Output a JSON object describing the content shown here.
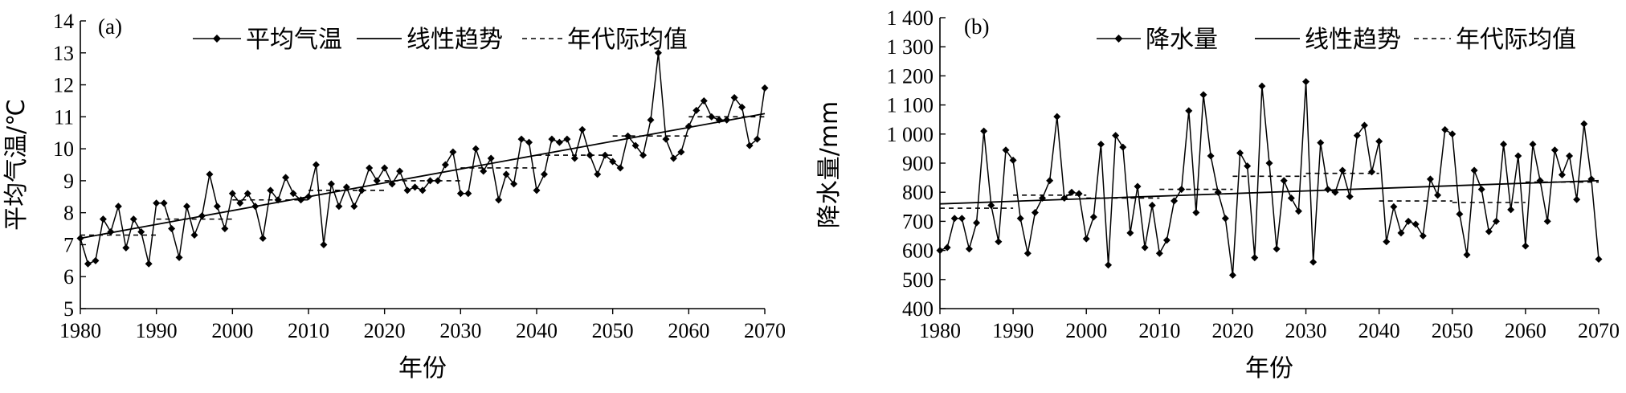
{
  "chart_data": [
    {
      "type": "line",
      "panel_label": "(a)",
      "title": "",
      "xlabel": "年份",
      "ylabel": "平均气温/℃",
      "xlim": [
        1980,
        2070
      ],
      "ylim": [
        5,
        14
      ],
      "x_ticks": [
        "1980",
        "1990",
        "2000",
        "2010",
        "2020",
        "2030",
        "2040",
        "2050",
        "2060",
        "2070"
      ],
      "y_ticks": [
        "5",
        "6",
        "7",
        "8",
        "9",
        "10",
        "11",
        "12",
        "13",
        "14"
      ],
      "legend_position": "top",
      "grid": false,
      "series": [
        {
          "name": "平均气温",
          "style": "line-diamond",
          "x": [
            1980,
            1981,
            1982,
            1983,
            1984,
            1985,
            1986,
            1987,
            1988,
            1989,
            1990,
            1991,
            1992,
            1993,
            1994,
            1995,
            1996,
            1997,
            1998,
            1999,
            2000,
            2001,
            2002,
            2003,
            2004,
            2005,
            2006,
            2007,
            2008,
            2009,
            2010,
            2011,
            2012,
            2013,
            2014,
            2015,
            2016,
            2017,
            2018,
            2019,
            2020,
            2021,
            2022,
            2023,
            2024,
            2025,
            2026,
            2027,
            2028,
            2029,
            2030,
            2031,
            2032,
            2033,
            2034,
            2035,
            2036,
            2037,
            2038,
            2039,
            2040,
            2041,
            2042,
            2043,
            2044,
            2045,
            2046,
            2047,
            2048,
            2049,
            2050,
            2051,
            2052,
            2053,
            2054,
            2055,
            2056,
            2057,
            2058,
            2059,
            2060,
            2061,
            2062,
            2063,
            2064,
            2065,
            2066,
            2067,
            2068,
            2069,
            2070
          ],
          "y": [
            7.2,
            6.4,
            6.5,
            7.8,
            7.4,
            8.2,
            6.9,
            7.8,
            7.4,
            6.4,
            8.3,
            8.3,
            7.5,
            6.6,
            8.2,
            7.3,
            7.9,
            9.2,
            8.2,
            7.5,
            8.6,
            8.3,
            8.6,
            8.2,
            7.2,
            8.7,
            8.4,
            9.1,
            8.6,
            8.4,
            8.5,
            9.5,
            7.0,
            8.9,
            8.2,
            8.8,
            8.2,
            8.7,
            9.4,
            9.0,
            9.4,
            8.9,
            9.3,
            8.7,
            8.8,
            8.7,
            9.0,
            9.0,
            9.5,
            9.9,
            8.6,
            8.6,
            10.0,
            9.3,
            9.7,
            8.4,
            9.2,
            8.9,
            10.3,
            10.2,
            8.7,
            9.2,
            10.3,
            10.2,
            10.3,
            9.7,
            10.6,
            9.8,
            9.2,
            9.8,
            9.6,
            9.4,
            10.4,
            10.1,
            9.8,
            10.9,
            13.0,
            10.3,
            9.7,
            9.9,
            10.7,
            11.2,
            11.5,
            11.0,
            10.9,
            10.9,
            11.6,
            11.3,
            10.1,
            10.3,
            11.9
          ]
        },
        {
          "name": "线性趋势",
          "style": "solid",
          "x": [
            1980,
            2070
          ],
          "y": [
            7.2,
            11.1
          ]
        },
        {
          "name": "年代际均值",
          "style": "dashed",
          "segments": [
            {
              "x": [
                1980,
                1990
              ],
              "y": 7.3
            },
            {
              "x": [
                1990,
                2000
              ],
              "y": 7.8
            },
            {
              "x": [
                2000,
                2010
              ],
              "y": 8.4
            },
            {
              "x": [
                2010,
                2020
              ],
              "y": 8.7
            },
            {
              "x": [
                2020,
                2030
              ],
              "y": 9.0
            },
            {
              "x": [
                2030,
                2040
              ],
              "y": 9.4
            },
            {
              "x": [
                2040,
                2050
              ],
              "y": 9.8
            },
            {
              "x": [
                2050,
                2060
              ],
              "y": 10.4
            },
            {
              "x": [
                2060,
                2070
              ],
              "y": 11.0
            }
          ]
        }
      ]
    },
    {
      "type": "line",
      "panel_label": "(b)",
      "title": "",
      "xlabel": "年份",
      "ylabel": "降水量/mm",
      "xlim": [
        1980,
        2070
      ],
      "ylim": [
        400,
        1400
      ],
      "x_ticks": [
        "1980",
        "1990",
        "2000",
        "2010",
        "2020",
        "2030",
        "2040",
        "2050",
        "2060",
        "2070"
      ],
      "y_ticks": [
        "400",
        "500",
        "600",
        "700",
        "800",
        "900",
        "1 000",
        "1 100",
        "1 200",
        "1 300",
        "1 400"
      ],
      "legend_position": "top",
      "grid": false,
      "series": [
        {
          "name": "降水量",
          "style": "line-diamond",
          "x": [
            1980,
            1981,
            1982,
            1983,
            1984,
            1985,
            1986,
            1987,
            1988,
            1989,
            1990,
            1991,
            1992,
            1993,
            1994,
            1995,
            1996,
            1997,
            1998,
            1999,
            2000,
            2001,
            2002,
            2003,
            2004,
            2005,
            2006,
            2007,
            2008,
            2009,
            2010,
            2011,
            2012,
            2013,
            2014,
            2015,
            2016,
            2017,
            2018,
            2019,
            2020,
            2021,
            2022,
            2023,
            2024,
            2025,
            2026,
            2027,
            2028,
            2029,
            2030,
            2031,
            2032,
            2033,
            2034,
            2035,
            2036,
            2037,
            2038,
            2039,
            2040,
            2041,
            2042,
            2043,
            2044,
            2045,
            2046,
            2047,
            2048,
            2049,
            2050,
            2051,
            2052,
            2053,
            2054,
            2055,
            2056,
            2057,
            2058,
            2059,
            2060,
            2061,
            2062,
            2063,
            2064,
            2065,
            2066,
            2067,
            2068,
            2069,
            2070
          ],
          "y": [
            600,
            610,
            710,
            710,
            605,
            695,
            1010,
            755,
            630,
            945,
            910,
            710,
            590,
            730,
            780,
            840,
            1060,
            780,
            800,
            795,
            640,
            715,
            965,
            550,
            995,
            955,
            660,
            820,
            610,
            755,
            590,
            635,
            770,
            810,
            1080,
            730,
            1135,
            925,
            800,
            710,
            515,
            935,
            890,
            575,
            1165,
            900,
            605,
            840,
            780,
            735,
            1180,
            560,
            970,
            810,
            800,
            875,
            785,
            995,
            1030,
            870,
            975,
            630,
            750,
            660,
            700,
            690,
            650,
            845,
            790,
            1015,
            1000,
            725,
            585,
            875,
            810,
            665,
            700,
            965,
            740,
            925,
            615,
            965,
            840,
            700,
            945,
            860,
            925,
            775,
            1035,
            845,
            570
          ]
        },
        {
          "name": "线性趋势",
          "style": "solid",
          "x": [
            1980,
            2070
          ],
          "y": [
            760,
            840
          ]
        },
        {
          "name": "年代际均值",
          "style": "dashed",
          "segments": [
            {
              "x": [
                1980,
                1990
              ],
              "y": 745
            },
            {
              "x": [
                1990,
                2000
              ],
              "y": 790
            },
            {
              "x": [
                2000,
                2010
              ],
              "y": 780
            },
            {
              "x": [
                2010,
                2020
              ],
              "y": 810
            },
            {
              "x": [
                2020,
                2030
              ],
              "y": 855
            },
            {
              "x": [
                2030,
                2040
              ],
              "y": 865
            },
            {
              "x": [
                2040,
                2050
              ],
              "y": 770
            },
            {
              "x": [
                2050,
                2060
              ],
              "y": 765
            },
            {
              "x": [
                2060,
                2070
              ],
              "y": 835
            }
          ]
        }
      ]
    }
  ]
}
